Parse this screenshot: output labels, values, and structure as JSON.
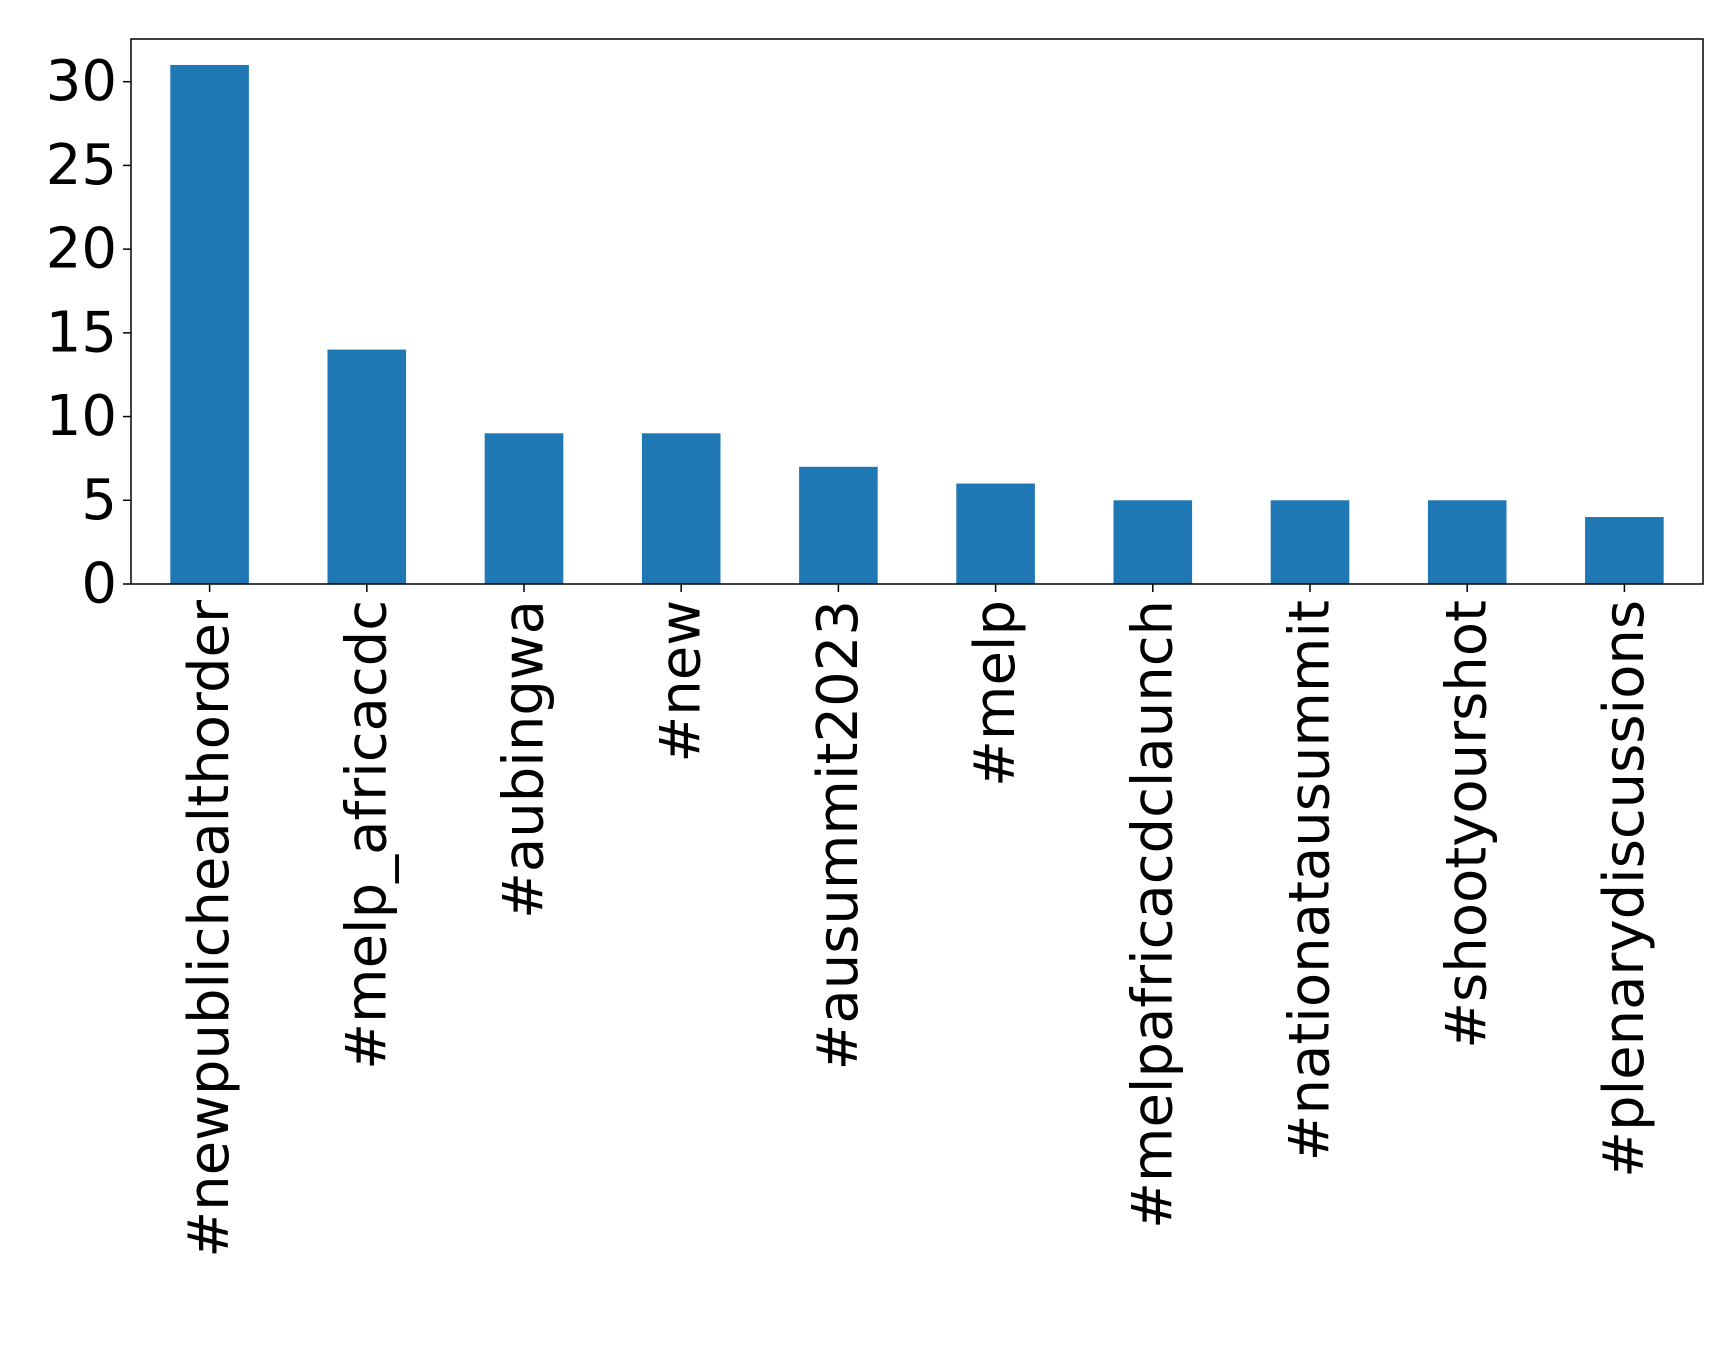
{
  "chart_data": {
    "type": "bar",
    "title": "",
    "xlabel": "",
    "ylabel": "",
    "categories": [
      "#newpublichealthorder",
      "#melp_africacdc",
      "#aubingwa",
      "#new",
      "#ausummit2023",
      "#melp",
      "#melpafricacdclaunch",
      "#nationatausummit",
      "#shootyourshot",
      "#plenarydiscussions"
    ],
    "values": [
      31,
      14,
      9,
      9,
      7,
      6,
      5,
      5,
      5,
      4
    ],
    "ylim": [
      0,
      32.55
    ],
    "yticks": [
      0,
      5,
      10,
      15,
      20,
      25,
      30
    ],
    "xtick_rotation": "vertical",
    "grid": false,
    "legend": "none",
    "bar_color": "#1f77b4"
  }
}
